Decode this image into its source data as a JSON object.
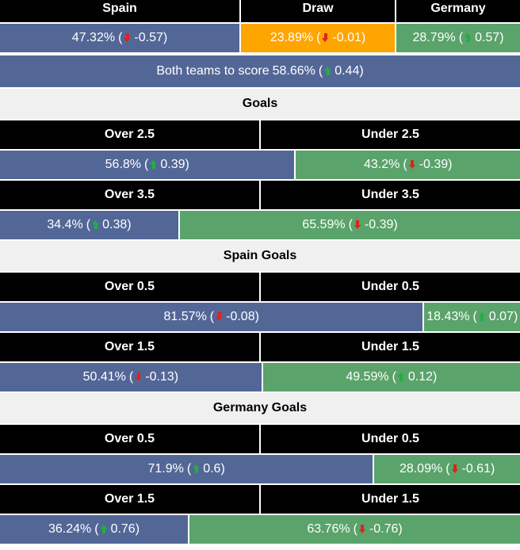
{
  "match": {
    "headers": [
      "Spain",
      "Draw",
      "Germany"
    ],
    "outcomes": [
      {
        "value": {
          "value": 47.32,
          "label": "47.32%"
        },
        "change": -0.57
      },
      {
        "value": {
          "value": 23.89,
          "label": "23.89%"
        },
        "change": -0.01
      },
      {
        "value": {
          "value": 28.79,
          "label": "28.79%"
        },
        "change": 0.57
      }
    ]
  },
  "btts": {
    "label": "Both teams to score",
    "value": {
      "value": 58.66,
      "label": "58.66%"
    },
    "change": 0.44
  },
  "sections": [
    {
      "title": "Goals",
      "markets": [
        {
          "over": "Over 2.5",
          "under": "Under 2.5",
          "over_value": {
            "value": 56.8,
            "label": "56.8%"
          },
          "over_change": 0.39,
          "under_value": {
            "value": 43.2,
            "label": "43.2%"
          },
          "under_change": -0.39
        },
        {
          "over": "Over 3.5",
          "under": "Under 3.5",
          "over_value": {
            "value": 34.4,
            "label": "34.4%"
          },
          "over_change": 0.38,
          "under_value": {
            "value": 65.59,
            "label": "65.59%"
          },
          "under_change": -0.39
        }
      ]
    },
    {
      "title": "Spain Goals",
      "markets": [
        {
          "over": "Over 0.5",
          "under": "Under 0.5",
          "over_value": {
            "value": 81.57,
            "label": "81.57%"
          },
          "over_change": -0.08,
          "under_value": {
            "value": 18.43,
            "label": "18.43%"
          },
          "under_change": 0.07
        },
        {
          "over": "Over 1.5",
          "under": "Under 1.5",
          "over_value": {
            "value": 50.41,
            "label": "50.41%"
          },
          "over_change": -0.13,
          "under_value": {
            "value": 49.59,
            "label": "49.59%"
          },
          "under_change": 0.12
        }
      ]
    },
    {
      "title": "Germany Goals",
      "markets": [
        {
          "over": "Over 0.5",
          "under": "Under 0.5",
          "over_value": {
            "value": 71.9,
            "label": "71.9%"
          },
          "over_change": 0.6,
          "under_value": {
            "value": 28.09,
            "label": "28.09%"
          },
          "under_change": -0.61
        },
        {
          "over": "Over 1.5",
          "under": "Under 1.5",
          "over_value": {
            "value": 36.24,
            "label": "36.24%"
          },
          "over_change": 0.76,
          "under_value": {
            "value": 63.76,
            "label": "63.76%"
          },
          "under_change": -0.76
        }
      ]
    }
  ]
}
